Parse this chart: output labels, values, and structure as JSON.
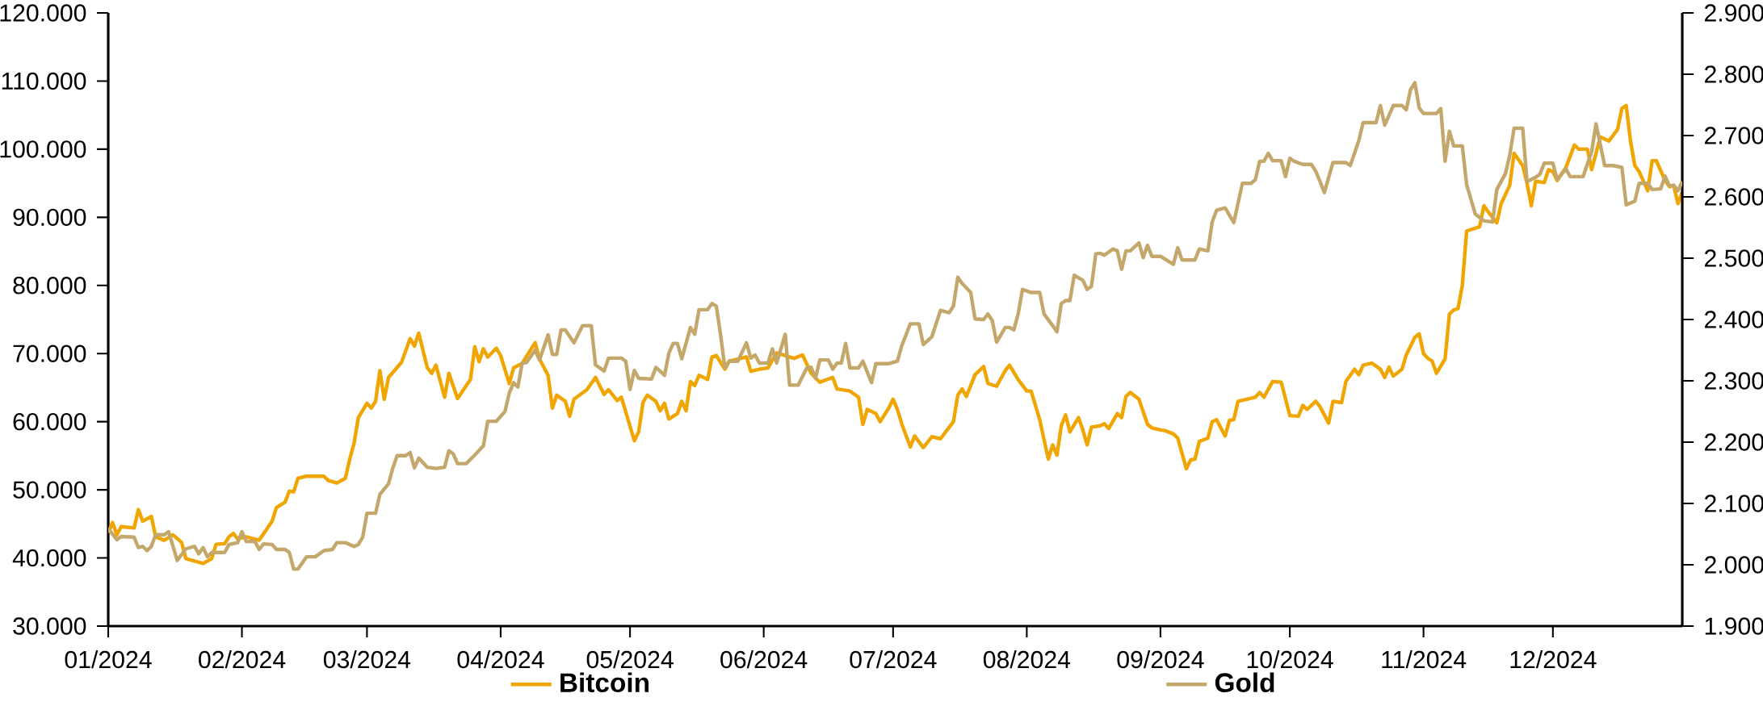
{
  "chart_data": {
    "type": "line",
    "legend": "bottom",
    "xlim": [
      "2024-01-01",
      "2024-12-31"
    ],
    "xticks": [
      {
        "value": "2024-01-01",
        "label": "01/2024"
      },
      {
        "value": "2024-02-01",
        "label": "02/2024"
      },
      {
        "value": "2024-03-01",
        "label": "03/2024"
      },
      {
        "value": "2024-04-01",
        "label": "04/2024"
      },
      {
        "value": "2024-05-01",
        "label": "05/2024"
      },
      {
        "value": "2024-06-01",
        "label": "06/2024"
      },
      {
        "value": "2024-07-01",
        "label": "07/2024"
      },
      {
        "value": "2024-08-01",
        "label": "08/2024"
      },
      {
        "value": "2024-09-01",
        "label": "09/2024"
      },
      {
        "value": "2024-10-01",
        "label": "10/2024"
      },
      {
        "value": "2024-11-01",
        "label": "11/2024"
      },
      {
        "value": "2024-12-01",
        "label": "12/2024"
      }
    ],
    "ylim": [
      30000,
      120000
    ],
    "yticks": [
      {
        "value": 30000,
        "label": "30.000"
      },
      {
        "value": 40000,
        "label": "40.000"
      },
      {
        "value": 50000,
        "label": "50.000"
      },
      {
        "value": 60000,
        "label": "60.000"
      },
      {
        "value": 70000,
        "label": "70.000"
      },
      {
        "value": 80000,
        "label": "80.000"
      },
      {
        "value": 90000,
        "label": "90.000"
      },
      {
        "value": 100000,
        "label": "100.000"
      },
      {
        "value": 110000,
        "label": "110.000"
      },
      {
        "value": 120000,
        "label": "120.000"
      }
    ],
    "y2lim": [
      1900,
      2900
    ],
    "y2ticks": [
      {
        "value": 1900,
        "label": "1.900"
      },
      {
        "value": 2000,
        "label": "2.000"
      },
      {
        "value": 2100,
        "label": "2.100"
      },
      {
        "value": 2200,
        "label": "2.200"
      },
      {
        "value": 2300,
        "label": "2.300"
      },
      {
        "value": 2400,
        "label": "2.400"
      },
      {
        "value": 2500,
        "label": "2.500"
      },
      {
        "value": 2600,
        "label": "2.600"
      },
      {
        "value": 2700,
        "label": "2.700"
      },
      {
        "value": 2800,
        "label": "2.800"
      },
      {
        "value": 2900,
        "label": "2.900"
      }
    ],
    "series": [
      {
        "name": "Bitcoin",
        "color": "#f0a500",
        "x": [
          "2024-01-01",
          "2024-01-02",
          "2024-01-03",
          "2024-01-04",
          "2024-01-07",
          "2024-01-08",
          "2024-01-09",
          "2024-01-11",
          "2024-01-12",
          "2024-01-14",
          "2024-01-16",
          "2024-01-18",
          "2024-01-19",
          "2024-01-23",
          "2024-01-25",
          "2024-01-26",
          "2024-01-28",
          "2024-01-29",
          "2024-01-30",
          "2024-01-31",
          "2024-02-02",
          "2024-02-05",
          "2024-02-08",
          "2024-02-09",
          "2024-02-11",
          "2024-02-12",
          "2024-02-13",
          "2024-02-14",
          "2024-02-16",
          "2024-02-20",
          "2024-02-21",
          "2024-02-23",
          "2024-02-25",
          "2024-02-26",
          "2024-02-27",
          "2024-02-28",
          "2024-03-01",
          "2024-03-02",
          "2024-03-03",
          "2024-03-04",
          "2024-03-05",
          "2024-03-06",
          "2024-03-09",
          "2024-03-11",
          "2024-03-12",
          "2024-03-13",
          "2024-03-15",
          "2024-03-16",
          "2024-03-17",
          "2024-03-19",
          "2024-03-20",
          "2024-03-22",
          "2024-03-25",
          "2024-03-26",
          "2024-03-27",
          "2024-03-28",
          "2024-03-29",
          "2024-03-31",
          "2024-04-01",
          "2024-04-03",
          "2024-04-04",
          "2024-04-06",
          "2024-04-09",
          "2024-04-10",
          "2024-04-12",
          "2024-04-13",
          "2024-04-14",
          "2024-04-16",
          "2024-04-17",
          "2024-04-18",
          "2024-04-21",
          "2024-04-23",
          "2024-04-25",
          "2024-04-26",
          "2024-04-28",
          "2024-04-29",
          "2024-05-02",
          "2024-05-03",
          "2024-05-04",
          "2024-05-05",
          "2024-05-07",
          "2024-05-08",
          "2024-05-09",
          "2024-05-10",
          "2024-05-12",
          "2024-05-13",
          "2024-05-14",
          "2024-05-15",
          "2024-05-16",
          "2024-05-17",
          "2024-05-19",
          "2024-05-20",
          "2024-05-21",
          "2024-05-23",
          "2024-05-24",
          "2024-05-28",
          "2024-05-29",
          "2024-05-31",
          "2024-06-02",
          "2024-06-04",
          "2024-06-08",
          "2024-06-10",
          "2024-06-12",
          "2024-06-14",
          "2024-06-17",
          "2024-06-18",
          "2024-06-21",
          "2024-06-23",
          "2024-06-24",
          "2024-06-25",
          "2024-06-27",
          "2024-06-28",
          "2024-06-30",
          "2024-07-01",
          "2024-07-02",
          "2024-07-03",
          "2024-07-05",
          "2024-07-06",
          "2024-07-08",
          "2024-07-10",
          "2024-07-12",
          "2024-07-15",
          "2024-07-16",
          "2024-07-17",
          "2024-07-18",
          "2024-07-20",
          "2024-07-21",
          "2024-07-22",
          "2024-07-23",
          "2024-07-25",
          "2024-07-27",
          "2024-07-28",
          "2024-07-30",
          "2024-08-01",
          "2024-08-02",
          "2024-08-04",
          "2024-08-06",
          "2024-08-07",
          "2024-08-08",
          "2024-08-09",
          "2024-08-10",
          "2024-08-11",
          "2024-08-13",
          "2024-08-14",
          "2024-08-15",
          "2024-08-16",
          "2024-08-18",
          "2024-08-19",
          "2024-08-20",
          "2024-08-22",
          "2024-08-23",
          "2024-08-24",
          "2024-08-25",
          "2024-08-27",
          "2024-08-29",
          "2024-08-30",
          "2024-09-01",
          "2024-09-02",
          "2024-09-04",
          "2024-09-05",
          "2024-09-07",
          "2024-09-08",
          "2024-09-09",
          "2024-09-10",
          "2024-09-12",
          "2024-09-13",
          "2024-09-14",
          "2024-09-16",
          "2024-09-17",
          "2024-09-18",
          "2024-09-19",
          "2024-09-21",
          "2024-09-23",
          "2024-09-24",
          "2024-09-25",
          "2024-09-27",
          "2024-09-29",
          "2024-10-01",
          "2024-10-03",
          "2024-10-04",
          "2024-10-05",
          "2024-10-07",
          "2024-10-08",
          "2024-10-10",
          "2024-10-11",
          "2024-10-13",
          "2024-10-14",
          "2024-10-16",
          "2024-10-17",
          "2024-10-18",
          "2024-10-20",
          "2024-10-22",
          "2024-10-23",
          "2024-10-24",
          "2024-10-25",
          "2024-10-27",
          "2024-10-28",
          "2024-10-30",
          "2024-10-31",
          "2024-11-01",
          "2024-11-02",
          "2024-11-03",
          "2024-11-04",
          "2024-11-06",
          "2024-11-07",
          "2024-11-08",
          "2024-11-09",
          "2024-11-10",
          "2024-11-11",
          "2024-11-14",
          "2024-11-15",
          "2024-11-16",
          "2024-11-18",
          "2024-11-19",
          "2024-11-21",
          "2024-11-22",
          "2024-11-24",
          "2024-11-25",
          "2024-11-26",
          "2024-11-27",
          "2024-11-29",
          "2024-11-30",
          "2024-12-01",
          "2024-12-02",
          "2024-12-04",
          "2024-12-06",
          "2024-12-07",
          "2024-12-09",
          "2024-12-10",
          "2024-12-12",
          "2024-12-14",
          "2024-12-16",
          "2024-12-17",
          "2024-12-18",
          "2024-12-19",
          "2024-12-20",
          "2024-12-21",
          "2024-12-23",
          "2024-12-24",
          "2024-12-25",
          "2024-12-27",
          "2024-12-28",
          "2024-12-29",
          "2024-12-30",
          "2024-12-31"
        ],
        "values": [
          43700,
          45200,
          43400,
          44600,
          44400,
          47100,
          45400,
          46100,
          43100,
          42600,
          43400,
          42300,
          39900,
          39200,
          39900,
          42000,
          42100,
          43100,
          43600,
          42800,
          43100,
          42600,
          45400,
          47400,
          48200,
          49800,
          49700,
          51700,
          52000,
          52000,
          51400,
          51000,
          51700,
          54500,
          56800,
          60600,
          62700,
          62000,
          63000,
          67500,
          63300,
          66500,
          68700,
          72200,
          71100,
          73000,
          67900,
          67100,
          68300,
          63600,
          67100,
          63400,
          66200,
          71000,
          68800,
          70700,
          69500,
          70800,
          69700,
          65600,
          67900,
          68600,
          71600,
          69200,
          66800,
          62000,
          63900,
          63000,
          60800,
          63300,
          64700,
          66500,
          64000,
          64700,
          63100,
          63600,
          57200,
          58500,
          62800,
          63900,
          63000,
          61600,
          62700,
          60400,
          61200,
          63000,
          61600,
          65900,
          65300,
          66800,
          66200,
          69500,
          69700,
          67700,
          68900,
          69500,
          67400,
          67700,
          67900,
          70100,
          69300,
          69800,
          67100,
          65800,
          66500,
          64800,
          64500,
          63600,
          59600,
          61800,
          61200,
          60000,
          62000,
          63300,
          61800,
          59700,
          56300,
          57900,
          56200,
          57800,
          57500,
          60000,
          63900,
          64800,
          63700,
          66900,
          67500,
          68100,
          65600,
          65200,
          67500,
          68300,
          66200,
          64500,
          64500,
          60300,
          54500,
          56600,
          55100,
          59400,
          61000,
          58500,
          60600,
          58800,
          56600,
          59200,
          59400,
          59700,
          59000,
          61200,
          60600,
          63700,
          64300,
          63300,
          59600,
          59100,
          58800,
          58700,
          58200,
          57600,
          53100,
          54400,
          54500,
          57100,
          57600,
          60000,
          60300,
          57900,
          60200,
          60300,
          63000,
          63300,
          63600,
          64300,
          63600,
          65900,
          65800,
          60900,
          60800,
          62400,
          61800,
          63000,
          62200,
          59800,
          63000,
          62800,
          65900,
          67700,
          66900,
          68300,
          68600,
          67700,
          66500,
          68000,
          66700,
          67700,
          69800,
          72400,
          72900,
          70000,
          69300,
          68900,
          67100,
          69200,
          75800,
          76400,
          76600,
          80000,
          88000,
          88600,
          91700,
          90800,
          89200,
          92000,
          94700,
          99400,
          97600,
          95000,
          91700,
          95300,
          95100,
          97000,
          96700,
          95400,
          97300,
          100600,
          100000,
          100000,
          97000,
          101800,
          101200,
          102900,
          106000,
          106400,
          101200,
          97600,
          96700,
          93900,
          98300,
          98300,
          95400,
          94500,
          94700,
          92000,
          93700
        ]
      },
      {
        "name": "Gold",
        "color": "#c4a76b",
        "axis": "y2",
        "x": [
          "2024-01-01",
          "2024-01-03",
          "2024-01-04",
          "2024-01-07",
          "2024-01-08",
          "2024-01-09",
          "2024-01-10",
          "2024-01-11",
          "2024-01-12",
          "2024-01-14",
          "2024-01-15",
          "2024-01-17",
          "2024-01-19",
          "2024-01-21",
          "2024-01-22",
          "2024-01-23",
          "2024-01-24",
          "2024-01-25",
          "2024-01-28",
          "2024-01-29",
          "2024-01-31",
          "2024-02-01",
          "2024-02-02",
          "2024-02-04",
          "2024-02-05",
          "2024-02-06",
          "2024-02-08",
          "2024-02-09",
          "2024-02-11",
          "2024-02-12",
          "2024-02-13",
          "2024-02-14",
          "2024-02-16",
          "2024-02-18",
          "2024-02-20",
          "2024-02-22",
          "2024-02-23",
          "2024-02-25",
          "2024-02-27",
          "2024-02-28",
          "2024-02-29",
          "2024-03-01",
          "2024-03-03",
          "2024-03-04",
          "2024-03-06",
          "2024-03-07",
          "2024-03-08",
          "2024-03-10",
          "2024-03-11",
          "2024-03-12",
          "2024-03-13",
          "2024-03-15",
          "2024-03-17",
          "2024-03-19",
          "2024-03-20",
          "2024-03-21",
          "2024-03-22",
          "2024-03-24",
          "2024-03-26",
          "2024-03-28",
          "2024-03-29",
          "2024-03-31",
          "2024-04-02",
          "2024-04-03",
          "2024-04-04",
          "2024-04-05",
          "2024-04-06",
          "2024-04-07",
          "2024-04-09",
          "2024-04-10",
          "2024-04-12",
          "2024-04-13",
          "2024-04-14",
          "2024-04-15",
          "2024-04-16",
          "2024-04-18",
          "2024-04-20",
          "2024-04-22",
          "2024-04-23",
          "2024-04-25",
          "2024-04-26",
          "2024-04-29",
          "2024-04-30",
          "2024-05-01",
          "2024-05-02",
          "2024-05-03",
          "2024-05-06",
          "2024-05-07",
          "2024-05-09",
          "2024-05-10",
          "2024-05-11",
          "2024-05-12",
          "2024-05-13",
          "2024-05-15",
          "2024-05-16",
          "2024-05-17",
          "2024-05-19",
          "2024-05-20",
          "2024-05-21",
          "2024-05-22",
          "2024-05-23",
          "2024-05-24",
          "2024-05-26",
          "2024-05-28",
          "2024-05-29",
          "2024-05-30",
          "2024-05-31",
          "2024-06-02",
          "2024-06-03",
          "2024-06-04",
          "2024-06-06",
          "2024-06-07",
          "2024-06-09",
          "2024-06-11",
          "2024-06-12",
          "2024-06-13",
          "2024-06-14",
          "2024-06-16",
          "2024-06-17",
          "2024-06-18",
          "2024-06-19",
          "2024-06-20",
          "2024-06-21",
          "2024-06-23",
          "2024-06-24",
          "2024-06-26",
          "2024-06-27",
          "2024-06-30",
          "2024-07-02",
          "2024-07-03",
          "2024-07-05",
          "2024-07-07",
          "2024-07-08",
          "2024-07-10",
          "2024-07-12",
          "2024-07-14",
          "2024-07-15",
          "2024-07-16",
          "2024-07-17",
          "2024-07-19",
          "2024-07-20",
          "2024-07-22",
          "2024-07-23",
          "2024-07-24",
          "2024-07-25",
          "2024-07-27",
          "2024-07-28",
          "2024-07-29",
          "2024-07-30",
          "2024-07-31",
          "2024-08-02",
          "2024-08-04",
          "2024-08-05",
          "2024-08-07",
          "2024-08-08",
          "2024-08-09",
          "2024-08-10",
          "2024-08-11",
          "2024-08-12",
          "2024-08-14",
          "2024-08-15",
          "2024-08-16",
          "2024-08-17",
          "2024-08-18",
          "2024-08-19",
          "2024-08-21",
          "2024-08-22",
          "2024-08-23",
          "2024-08-24",
          "2024-08-25",
          "2024-08-27",
          "2024-08-28",
          "2024-08-29",
          "2024-08-30",
          "2024-09-01",
          "2024-09-04",
          "2024-09-05",
          "2024-09-06",
          "2024-09-09",
          "2024-09-10",
          "2024-09-12",
          "2024-09-13",
          "2024-09-14",
          "2024-09-16",
          "2024-09-18",
          "2024-09-20",
          "2024-09-22",
          "2024-09-23",
          "2024-09-24",
          "2024-09-25",
          "2024-09-26",
          "2024-09-27",
          "2024-09-29",
          "2024-09-30",
          "2024-10-01",
          "2024-10-02",
          "2024-10-04",
          "2024-10-06",
          "2024-10-07",
          "2024-10-08",
          "2024-10-09",
          "2024-10-11",
          "2024-10-14",
          "2024-10-15",
          "2024-10-16",
          "2024-10-17",
          "2024-10-18",
          "2024-10-21",
          "2024-10-22",
          "2024-10-23",
          "2024-10-25",
          "2024-10-27",
          "2024-10-28",
          "2024-10-29",
          "2024-10-30",
          "2024-10-31",
          "2024-11-01",
          "2024-11-04",
          "2024-11-05",
          "2024-11-06",
          "2024-11-07",
          "2024-11-08",
          "2024-11-10",
          "2024-11-11",
          "2024-11-13",
          "2024-11-15",
          "2024-11-17",
          "2024-11-18",
          "2024-11-20",
          "2024-11-21",
          "2024-11-22",
          "2024-11-24",
          "2024-11-25",
          "2024-11-27",
          "2024-11-28",
          "2024-11-29",
          "2024-12-01",
          "2024-12-02",
          "2024-12-04",
          "2024-12-05",
          "2024-12-08",
          "2024-12-10",
          "2024-12-11",
          "2024-12-13",
          "2024-12-15",
          "2024-12-17",
          "2024-12-18",
          "2024-12-20",
          "2024-12-21",
          "2024-12-23",
          "2024-12-24",
          "2024-12-26",
          "2024-12-27",
          "2024-12-28",
          "2024-12-29",
          "2024-12-30",
          "2024-12-31"
        ],
        "values": [
          2059,
          2041,
          2046,
          2045,
          2028,
          2030,
          2023,
          2030,
          2049,
          2049,
          2054,
          2007,
          2026,
          2030,
          2018,
          2028,
          2013,
          2020,
          2020,
          2033,
          2036,
          2054,
          2038,
          2038,
          2025,
          2034,
          2033,
          2025,
          2025,
          2020,
          1993,
          1993,
          2013,
          2013,
          2023,
          2025,
          2036,
          2036,
          2030,
          2033,
          2045,
          2084,
          2084,
          2115,
          2132,
          2158,
          2178,
          2178,
          2183,
          2158,
          2174,
          2159,
          2157,
          2159,
          2186,
          2181,
          2165,
          2165,
          2179,
          2194,
          2234,
          2234,
          2250,
          2280,
          2297,
          2290,
          2329,
          2330,
          2350,
          2334,
          2375,
          2343,
          2343,
          2383,
          2383,
          2362,
          2390,
          2390,
          2326,
          2316,
          2337,
          2337,
          2332,
          2286,
          2317,
          2304,
          2303,
          2322,
          2309,
          2345,
          2361,
          2361,
          2336,
          2387,
          2376,
          2416,
          2416,
          2426,
          2422,
          2375,
          2321,
          2332,
          2332,
          2362,
          2337,
          2342,
          2329,
          2329,
          2352,
          2329,
          2376,
          2293,
          2293,
          2321,
          2322,
          2304,
          2334,
          2334,
          2319,
          2329,
          2329,
          2361,
          2321,
          2321,
          2332,
          2297,
          2328,
          2328,
          2332,
          2357,
          2393,
          2393,
          2359,
          2372,
          2415,
          2411,
          2422,
          2469,
          2459,
          2444,
          2401,
          2400,
          2409,
          2398,
          2363,
          2387,
          2387,
          2383,
          2409,
          2449,
          2444,
          2444,
          2409,
          2390,
          2380,
          2426,
          2431,
          2431,
          2472,
          2464,
          2449,
          2454,
          2507,
          2508,
          2505,
          2515,
          2512,
          2482,
          2512,
          2512,
          2525,
          2501,
          2521,
          2503,
          2503,
          2490,
          2517,
          2497,
          2497,
          2515,
          2512,
          2559,
          2578,
          2582,
          2558,
          2622,
          2622,
          2628,
          2658,
          2658,
          2671,
          2659,
          2659,
          2633,
          2663,
          2658,
          2653,
          2653,
          2642,
          2625,
          2607,
          2656,
          2656,
          2651,
          2671,
          2692,
          2721,
          2721,
          2749,
          2717,
          2749,
          2749,
          2742,
          2775,
          2786,
          2745,
          2736,
          2736,
          2744,
          2658,
          2707,
          2683,
          2683,
          2620,
          2572,
          2561,
          2559,
          2612,
          2638,
          2668,
          2712,
          2712,
          2625,
          2632,
          2637,
          2655,
          2655,
          2628,
          2646,
          2633,
          2633,
          2674,
          2719,
          2651,
          2651,
          2648,
          2587,
          2593,
          2622,
          2622,
          2612,
          2613,
          2634,
          2618,
          2619,
          2610,
          2625
        ]
      }
    ]
  }
}
